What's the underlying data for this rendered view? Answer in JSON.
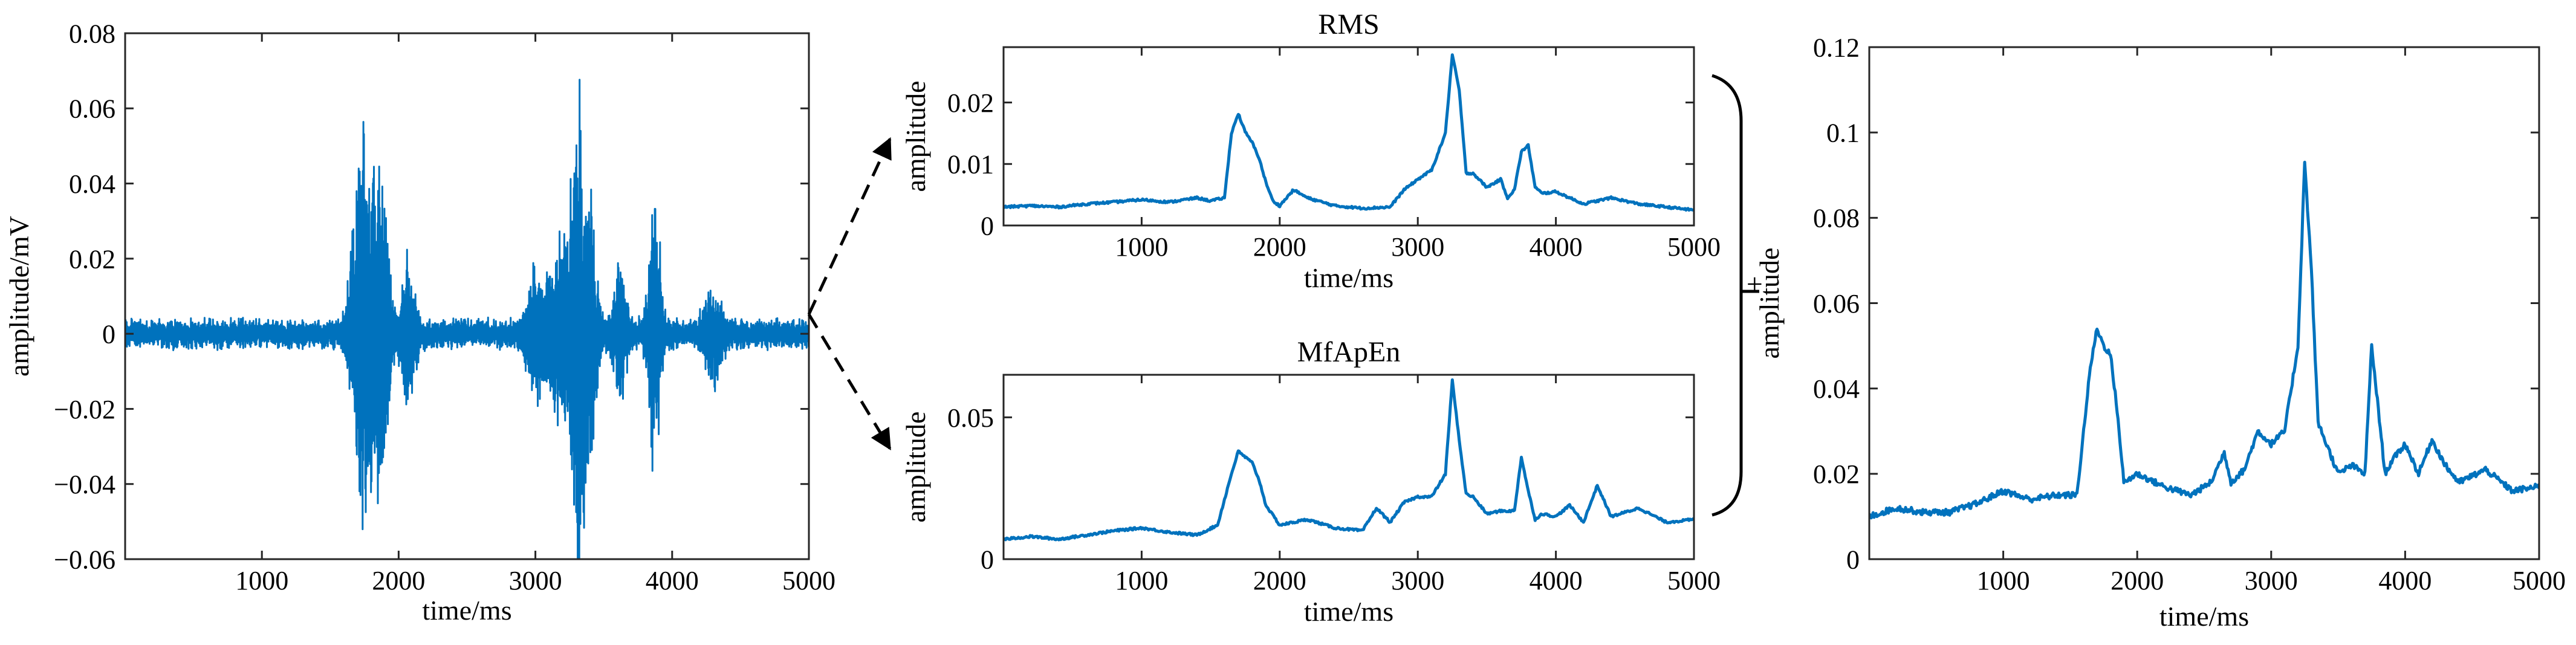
{
  "colors": {
    "line": "#0072BD",
    "axis": "#262626",
    "arrow": "#000000",
    "background": "#ffffff"
  },
  "connectors": {
    "plus_label": "+"
  },
  "chart_data": [
    {
      "id": "emg",
      "type": "line",
      "title": "",
      "xlabel": "time/ms",
      "ylabel": "amplitude/mV",
      "xlim": [
        0,
        5000
      ],
      "ylim": [
        -0.06,
        0.08
      ],
      "xticks": [
        1000,
        2000,
        3000,
        4000,
        5000
      ],
      "xtick_labels": [
        "1000",
        "2000",
        "3000",
        "4000",
        "5000"
      ],
      "yticks": [
        -0.06,
        -0.04,
        -0.02,
        0,
        0.02,
        0.04,
        0.06,
        0.08
      ],
      "ytick_labels": [
        "−0.06",
        "−0.04",
        "−0.02",
        "0",
        "0.02",
        "0.04",
        "0.06",
        "0.08"
      ],
      "grid": false,
      "series": [
        {
          "style": "signal",
          "x": [
            0,
            5000
          ],
          "y": [
            0,
            0
          ],
          "base_amplitude": 0.0045,
          "bursts": [
            {
              "x": 1720,
              "amplitude": 0.044,
              "width": 80
            },
            {
              "x": 1790,
              "amplitude": 0.03,
              "width": 70
            },
            {
              "x": 1880,
              "amplitude": 0.04,
              "width": 60
            },
            {
              "x": 2070,
              "amplitude": 0.02,
              "width": 60
            },
            {
              "x": 3000,
              "amplitude": 0.018,
              "width": 80
            },
            {
              "x": 3180,
              "amplitude": 0.026,
              "width": 90
            },
            {
              "x": 3310,
              "amplitude": 0.068,
              "width": 60
            },
            {
              "x": 3400,
              "amplitude": 0.035,
              "width": 60
            },
            {
              "x": 3620,
              "amplitude": 0.018,
              "width": 60
            },
            {
              "x": 3870,
              "amplitude": 0.042,
              "width": 50
            },
            {
              "x": 4300,
              "amplitude": 0.012,
              "width": 80
            }
          ]
        }
      ]
    },
    {
      "id": "rms",
      "type": "line",
      "title": "RMS",
      "xlabel": "time/ms",
      "ylabel": "amplitude",
      "xlim": [
        0,
        5000
      ],
      "ylim": [
        0,
        0.029
      ],
      "xticks": [
        1000,
        2000,
        3000,
        4000,
        5000
      ],
      "xtick_labels": [
        "1000",
        "2000",
        "3000",
        "4000",
        "5000"
      ],
      "yticks": [
        0,
        0.01,
        0.02
      ],
      "ytick_labels": [
        "0",
        "0.01",
        "0.02"
      ],
      "grid": false,
      "series": [
        {
          "x": [
            0,
            200,
            400,
            600,
            800,
            1000,
            1100,
            1200,
            1400,
            1500,
            1600,
            1650,
            1700,
            1750,
            1800,
            1850,
            1900,
            1950,
            2000,
            2100,
            2200,
            2400,
            2600,
            2800,
            2900,
            3000,
            3100,
            3200,
            3250,
            3300,
            3350,
            3400,
            3500,
            3600,
            3650,
            3700,
            3750,
            3800,
            3850,
            3900,
            4000,
            4200,
            4400,
            4600,
            4800,
            5000
          ],
          "y": [
            0.003,
            0.0032,
            0.003,
            0.0035,
            0.0038,
            0.0042,
            0.004,
            0.0038,
            0.0045,
            0.004,
            0.0045,
            0.015,
            0.0182,
            0.0152,
            0.0135,
            0.011,
            0.007,
            0.004,
            0.0032,
            0.0058,
            0.0045,
            0.0032,
            0.0028,
            0.003,
            0.0058,
            0.0075,
            0.009,
            0.015,
            0.0278,
            0.022,
            0.0085,
            0.0085,
            0.0062,
            0.0075,
            0.0045,
            0.0058,
            0.012,
            0.013,
            0.0062,
            0.0052,
            0.0055,
            0.0035,
            0.0045,
            0.0035,
            0.003,
            0.0025
          ]
        }
      ]
    },
    {
      "id": "mfapen",
      "type": "line",
      "title": "MfApEn",
      "xlabel": "time/ms",
      "ylabel": "amplitude",
      "xlim": [
        0,
        5000
      ],
      "ylim": [
        0,
        0.065
      ],
      "xticks": [
        1000,
        2000,
        3000,
        4000,
        5000
      ],
      "xtick_labels": [
        "1000",
        "2000",
        "3000",
        "4000",
        "5000"
      ],
      "yticks": [
        0,
        0.05
      ],
      "ytick_labels": [
        "0",
        "0.05"
      ],
      "grid": false,
      "series": [
        {
          "x": [
            0,
            200,
            400,
            600,
            800,
            1000,
            1200,
            1400,
            1550,
            1650,
            1700,
            1750,
            1800,
            1850,
            1900,
            2000,
            2200,
            2400,
            2600,
            2700,
            2800,
            2900,
            3000,
            3100,
            3200,
            3250,
            3300,
            3350,
            3400,
            3500,
            3600,
            3700,
            3750,
            3800,
            3850,
            3900,
            4000,
            4100,
            4200,
            4300,
            4400,
            4600,
            4800,
            5000
          ],
          "y": [
            0.007,
            0.008,
            0.007,
            0.0085,
            0.01,
            0.011,
            0.0095,
            0.0085,
            0.012,
            0.03,
            0.038,
            0.036,
            0.034,
            0.028,
            0.019,
            0.012,
            0.014,
            0.011,
            0.01,
            0.018,
            0.013,
            0.02,
            0.022,
            0.022,
            0.03,
            0.063,
            0.042,
            0.023,
            0.022,
            0.016,
            0.017,
            0.017,
            0.036,
            0.024,
            0.014,
            0.016,
            0.015,
            0.019,
            0.013,
            0.026,
            0.015,
            0.018,
            0.013,
            0.014
          ]
        }
      ]
    },
    {
      "id": "combined",
      "type": "line",
      "title": "",
      "xlabel": "time/ms",
      "ylabel": "amplitude",
      "xlim": [
        0,
        5000
      ],
      "ylim": [
        0,
        0.12
      ],
      "xticks": [
        1000,
        2000,
        3000,
        4000,
        5000
      ],
      "xtick_labels": [
        "1000",
        "2000",
        "3000",
        "4000",
        "5000"
      ],
      "yticks": [
        0,
        0.02,
        0.04,
        0.06,
        0.08,
        0.1,
        0.12
      ],
      "ytick_labels": [
        "0",
        "0.02",
        "0.04",
        "0.06",
        "0.08",
        "0.1",
        "0.12"
      ],
      "grid": false,
      "series": [
        {
          "x": [
            0,
            200,
            400,
            600,
            800,
            1000,
            1100,
            1200,
            1400,
            1550,
            1650,
            1700,
            1750,
            1800,
            1850,
            1900,
            2000,
            2200,
            2400,
            2550,
            2650,
            2700,
            2800,
            2900,
            3000,
            3100,
            3200,
            3250,
            3300,
            3350,
            3400,
            3500,
            3600,
            3700,
            3750,
            3800,
            3850,
            3900,
            4000,
            4100,
            4200,
            4300,
            4400,
            4600,
            4800,
            5000
          ],
          "y": [
            0.01,
            0.012,
            0.011,
            0.011,
            0.013,
            0.016,
            0.015,
            0.014,
            0.015,
            0.015,
            0.045,
            0.054,
            0.05,
            0.048,
            0.035,
            0.018,
            0.02,
            0.017,
            0.015,
            0.018,
            0.025,
            0.018,
            0.021,
            0.03,
            0.027,
            0.03,
            0.05,
            0.093,
            0.068,
            0.032,
            0.028,
            0.02,
            0.022,
            0.02,
            0.05,
            0.035,
            0.02,
            0.023,
            0.027,
            0.02,
            0.028,
            0.022,
            0.018,
            0.021,
            0.016,
            0.017
          ]
        }
      ]
    }
  ]
}
